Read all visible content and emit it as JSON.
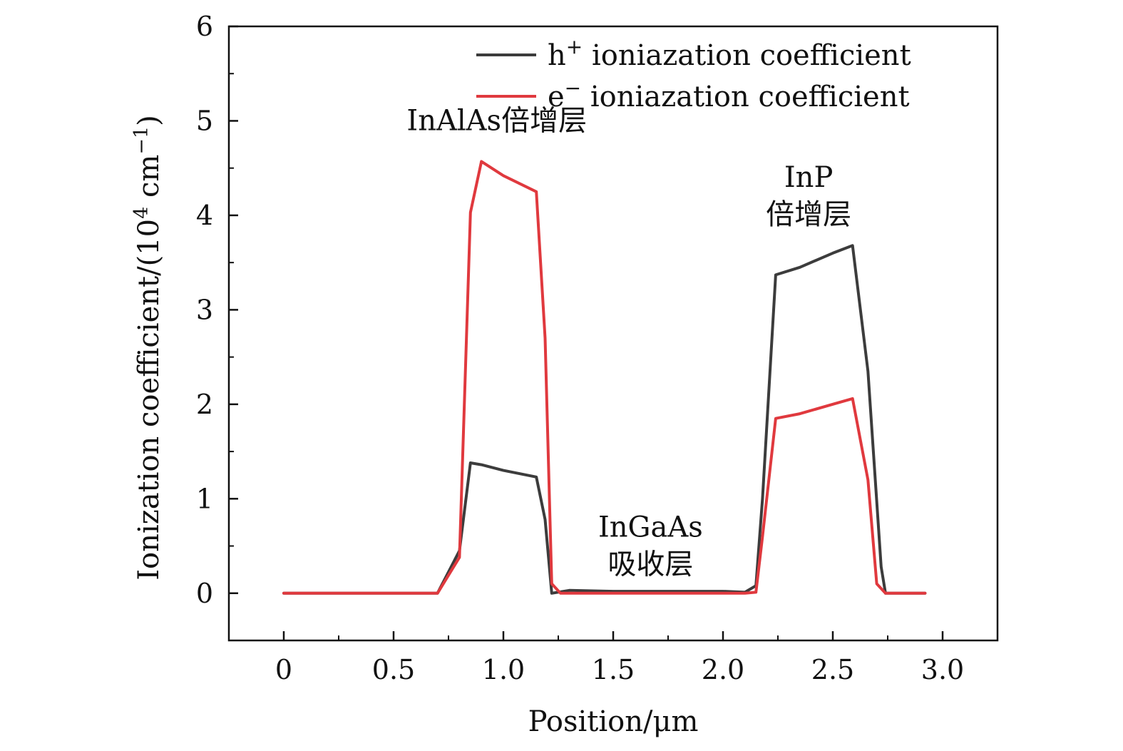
{
  "chart_data": {
    "type": "line",
    "title": "",
    "xlabel": "Position/μm",
    "ylabel_parts": {
      "main": "Ionization coefficient/(10",
      "exp": "4",
      "unit": " cm",
      "unit_exp": "−1",
      "close": ")"
    },
    "xlim": [
      -0.25,
      3.25
    ],
    "ylim": [
      -0.5,
      6
    ],
    "xticks": [
      0,
      0.5,
      1.0,
      1.5,
      2.0,
      2.5,
      3.0
    ],
    "xtick_labels": [
      "0",
      "0.5",
      "1.0",
      "1.5",
      "2.0",
      "2.5",
      "3.0"
    ],
    "yticks": [
      0,
      1,
      2,
      3,
      4,
      5,
      6
    ],
    "ytick_labels": [
      "0",
      "1",
      "2",
      "3",
      "4",
      "5",
      "6"
    ],
    "grid": false,
    "legend_position": "top-right",
    "series": [
      {
        "name": "h+ ionization coefficient",
        "legend_label": "h",
        "legend_sup": "+",
        "legend_rest": " ioniazation coefficient",
        "color": "#3c3c3c",
        "x": [
          0,
          0.7,
          0.8,
          0.85,
          0.9,
          1.0,
          1.15,
          1.19,
          1.22,
          1.3,
          1.5,
          2.0,
          2.1,
          2.15,
          2.18,
          2.24,
          2.35,
          2.5,
          2.59,
          2.66,
          2.72,
          2.74,
          2.92
        ],
        "y": [
          0,
          0,
          0.45,
          1.38,
          1.36,
          1.3,
          1.23,
          0.78,
          0,
          0.03,
          0.02,
          0.02,
          0.01,
          0.08,
          1.0,
          3.37,
          3.45,
          3.6,
          3.68,
          2.35,
          0.28,
          0,
          0
        ]
      },
      {
        "name": "e- ionization coefficient",
        "legend_label": "e",
        "legend_sup": "−",
        "legend_rest": " ioniazation coefficient",
        "color": "#e0393e",
        "x": [
          0,
          0.7,
          0.8,
          0.85,
          0.9,
          1.0,
          1.15,
          1.19,
          1.22,
          1.26,
          1.5,
          2.0,
          2.1,
          2.15,
          2.18,
          2.24,
          2.35,
          2.5,
          2.59,
          2.66,
          2.7,
          2.74,
          2.92
        ],
        "y": [
          0,
          0,
          0.38,
          4.03,
          4.57,
          4.42,
          4.25,
          2.7,
          0.1,
          0,
          0,
          0,
          0,
          0.01,
          0.6,
          1.85,
          1.9,
          2.0,
          2.06,
          1.2,
          0.1,
          0,
          0
        ]
      }
    ],
    "annotations": [
      {
        "id": "inalas",
        "lines": [
          "InAlAs倍增层"
        ],
        "x": 0.97,
        "y": 4.9
      },
      {
        "id": "inp",
        "lines": [
          "InP",
          "倍增层"
        ],
        "x": 2.39,
        "y": 4.3
      },
      {
        "id": "ingaas",
        "lines": [
          "InGaAs",
          "吸收层"
        ],
        "x": 1.67,
        "y": 0.6
      }
    ]
  }
}
